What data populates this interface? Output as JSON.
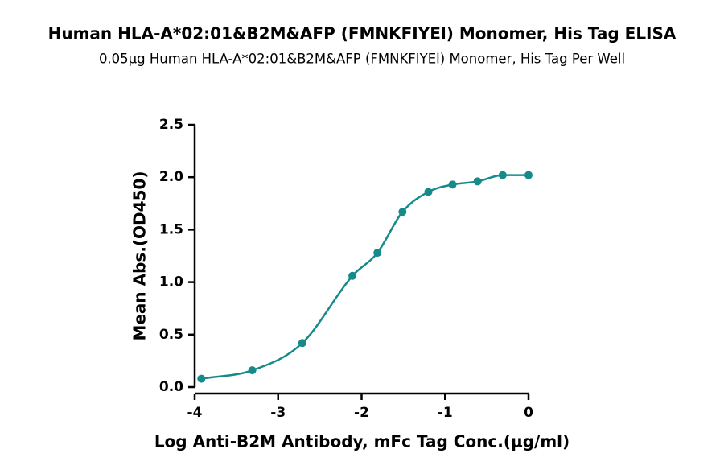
{
  "chart_data": {
    "type": "scatter",
    "title": "Human HLA-A*02:01&B2M&AFP (FMNKFIYEl) Monomer, His Tag ELISA",
    "subtitle": "0.05μg Human HLA-A*02:01&B2M&AFP (FMNKFIYEl) Monomer, His Tag Per Well",
    "x_label": "Log Anti-B2M Antibody, mFc Tag Conc.(μg/ml)",
    "y_label": "Mean Abs.(OD450)",
    "x": [
      -3.92,
      -3.31,
      -2.71,
      -2.11,
      -1.81,
      -1.51,
      -1.2,
      -0.91,
      -0.61,
      -0.31,
      0
    ],
    "values": [
      0.08,
      0.16,
      0.42,
      1.06,
      1.28,
      1.67,
      1.86,
      1.93,
      1.96,
      2.02,
      2.02
    ],
    "color": "#168a8a",
    "fit_curve": true,
    "xlim": [
      -4,
      0
    ],
    "xticks": [
      -4,
      -3,
      -2,
      -1,
      0
    ],
    "ylim": [
      0,
      2.5
    ],
    "yticks": [
      {
        "value": 0,
        "label": "0.0"
      },
      0.5,
      {
        "value": 1,
        "label": "1.0"
      },
      1.5,
      {
        "value": 2,
        "label": "2.0"
      },
      2.5
    ]
  }
}
